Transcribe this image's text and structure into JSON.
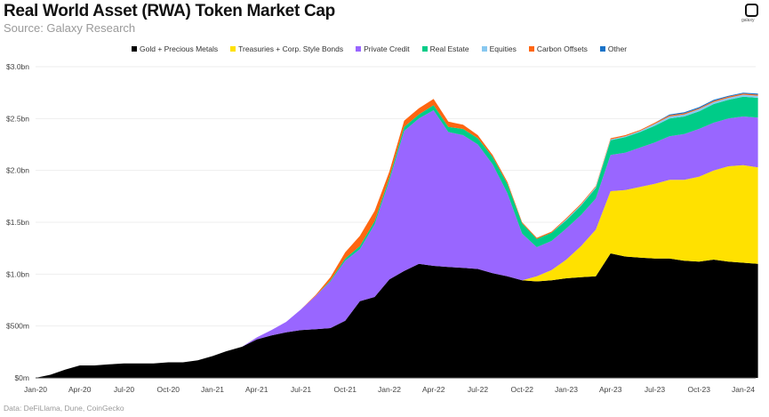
{
  "header": {
    "title": "Real World Asset (RWA) Token Market Cap",
    "subtitle": "Source: Galaxy Research",
    "logo_text": "galaxy"
  },
  "footer": {
    "source": "Data: DeFiLlama, Dune, CoinGecko"
  },
  "colors": {
    "gold": "#000000",
    "treasuries": "#ffe100",
    "private_credit": "#9966ff",
    "real_estate": "#00cc88",
    "equities": "#88c8f0",
    "carbon": "#ff6611",
    "other": "#1a73c8",
    "grid": "#eeeeee"
  },
  "chart_data": {
    "type": "area",
    "stacked": true,
    "title": "Real World Asset (RWA) Token Market Cap",
    "xlabel": "",
    "ylabel": "",
    "ylim": [
      0,
      3.0
    ],
    "y_unit": "USD bn",
    "grid": true,
    "legend_position": "top",
    "y_ticks": [
      {
        "value": 0,
        "label": "$0m"
      },
      {
        "value": 0.5,
        "label": "$500m"
      },
      {
        "value": 1.0,
        "label": "$1.0bn"
      },
      {
        "value": 1.5,
        "label": "$1.5bn"
      },
      {
        "value": 2.0,
        "label": "$2.0bn"
      },
      {
        "value": 2.5,
        "label": "$2.5bn"
      },
      {
        "value": 3.0,
        "label": "$3.0bn"
      }
    ],
    "x_ticks": [
      "Jan-20",
      "Apr-20",
      "Jul-20",
      "Oct-20",
      "Jan-21",
      "Apr-21",
      "Jul-21",
      "Oct-21",
      "Jan-22",
      "Apr-22",
      "Jul-22",
      "Oct-22",
      "Jan-23",
      "Apr-23",
      "Jul-23",
      "Oct-23",
      "Jan-24"
    ],
    "x": [
      "Jan-20",
      "Feb-20",
      "Mar-20",
      "Apr-20",
      "May-20",
      "Jun-20",
      "Jul-20",
      "Aug-20",
      "Sep-20",
      "Oct-20",
      "Nov-20",
      "Dec-20",
      "Jan-21",
      "Feb-21",
      "Mar-21",
      "Apr-21",
      "May-21",
      "Jun-21",
      "Jul-21",
      "Aug-21",
      "Sep-21",
      "Oct-21",
      "Nov-21",
      "Dec-21",
      "Jan-22",
      "Feb-22",
      "Mar-22",
      "Apr-22",
      "May-22",
      "Jun-22",
      "Jul-22",
      "Aug-22",
      "Sep-22",
      "Oct-22",
      "Nov-22",
      "Dec-22",
      "Jan-23",
      "Feb-23",
      "Mar-23",
      "Apr-23",
      "May-23",
      "Jun-23",
      "Jul-23",
      "Aug-23",
      "Sep-23",
      "Oct-23",
      "Nov-23",
      "Dec-23",
      "Jan-24",
      "Feb-24"
    ],
    "series": [
      {
        "name": "Gold + Precious Metals",
        "key": "gold",
        "values": [
          0.0,
          0.03,
          0.08,
          0.12,
          0.12,
          0.13,
          0.14,
          0.14,
          0.14,
          0.15,
          0.15,
          0.17,
          0.21,
          0.26,
          0.3,
          0.37,
          0.41,
          0.44,
          0.46,
          0.47,
          0.48,
          0.55,
          0.74,
          0.78,
          0.95,
          1.03,
          1.1,
          1.08,
          1.07,
          1.06,
          1.05,
          1.01,
          0.98,
          0.94,
          0.93,
          0.94,
          0.96,
          0.97,
          0.98,
          1.2,
          1.17,
          1.16,
          1.15,
          1.15,
          1.13,
          1.12,
          1.14,
          1.12,
          1.11,
          1.1
        ]
      },
      {
        "name": "Treasuries + Corp. Style Bonds",
        "key": "treasuries",
        "values": [
          0,
          0,
          0,
          0,
          0,
          0,
          0,
          0,
          0,
          0,
          0,
          0,
          0,
          0,
          0,
          0,
          0,
          0,
          0,
          0,
          0,
          0,
          0,
          0,
          0,
          0,
          0,
          0,
          0,
          0,
          0,
          0,
          0,
          0,
          0.05,
          0.1,
          0.18,
          0.3,
          0.45,
          0.6,
          0.64,
          0.68,
          0.72,
          0.76,
          0.78,
          0.82,
          0.86,
          0.92,
          0.94,
          0.93
        ]
      },
      {
        "name": "Private Credit",
        "key": "private_credit",
        "values": [
          0,
          0,
          0,
          0,
          0,
          0,
          0,
          0,
          0,
          0,
          0,
          0,
          0,
          0,
          0,
          0.02,
          0.05,
          0.1,
          0.2,
          0.32,
          0.45,
          0.58,
          0.5,
          0.7,
          0.95,
          1.35,
          1.4,
          1.5,
          1.3,
          1.28,
          1.2,
          1.05,
          0.8,
          0.45,
          0.28,
          0.28,
          0.3,
          0.3,
          0.3,
          0.35,
          0.36,
          0.38,
          0.4,
          0.42,
          0.44,
          0.46,
          0.46,
          0.46,
          0.47,
          0.48
        ]
      },
      {
        "name": "Real Estate",
        "key": "real_estate",
        "values": [
          0,
          0,
          0,
          0,
          0,
          0,
          0,
          0,
          0,
          0,
          0,
          0,
          0,
          0,
          0,
          0,
          0,
          0,
          0,
          0,
          0.01,
          0.02,
          0.03,
          0.03,
          0.03,
          0.04,
          0.04,
          0.05,
          0.05,
          0.06,
          0.06,
          0.07,
          0.09,
          0.1,
          0.08,
          0.08,
          0.08,
          0.09,
          0.1,
          0.14,
          0.15,
          0.15,
          0.16,
          0.17,
          0.17,
          0.17,
          0.18,
          0.18,
          0.19,
          0.19
        ]
      },
      {
        "name": "Equities",
        "key": "equities",
        "values": [
          0,
          0,
          0,
          0,
          0,
          0,
          0,
          0,
          0,
          0,
          0,
          0,
          0,
          0,
          0,
          0,
          0,
          0,
          0,
          0,
          0,
          0,
          0,
          0,
          0,
          0,
          0,
          0,
          0,
          0,
          0,
          0,
          0,
          0,
          0,
          0,
          0.01,
          0.01,
          0.01,
          0.01,
          0.01,
          0.01,
          0.02,
          0.02,
          0.02,
          0.02,
          0.02,
          0.02,
          0.02,
          0.02
        ]
      },
      {
        "name": "Carbon Offsets",
        "key": "carbon",
        "values": [
          0,
          0,
          0,
          0,
          0,
          0,
          0,
          0,
          0,
          0,
          0,
          0,
          0,
          0,
          0,
          0,
          0,
          0,
          0,
          0.01,
          0.03,
          0.06,
          0.1,
          0.1,
          0.06,
          0.06,
          0.06,
          0.06,
          0.05,
          0.04,
          0.03,
          0.02,
          0.02,
          0.01,
          0.01,
          0.01,
          0.01,
          0.01,
          0.01,
          0.01,
          0.01,
          0.01,
          0.01,
          0.01,
          0.01,
          0.01,
          0.01,
          0.01,
          0.01,
          0.01
        ]
      },
      {
        "name": "Other",
        "key": "other",
        "values": [
          0,
          0,
          0,
          0,
          0,
          0,
          0,
          0,
          0,
          0,
          0,
          0,
          0,
          0,
          0,
          0,
          0,
          0,
          0,
          0,
          0,
          0,
          0,
          0,
          0,
          0,
          0,
          0,
          0,
          0,
          0,
          0,
          0,
          0,
          0,
          0,
          0,
          0,
          0,
          0,
          0,
          0,
          0,
          0.01,
          0.01,
          0.01,
          0.01,
          0.01,
          0.01,
          0.01
        ]
      }
    ]
  }
}
